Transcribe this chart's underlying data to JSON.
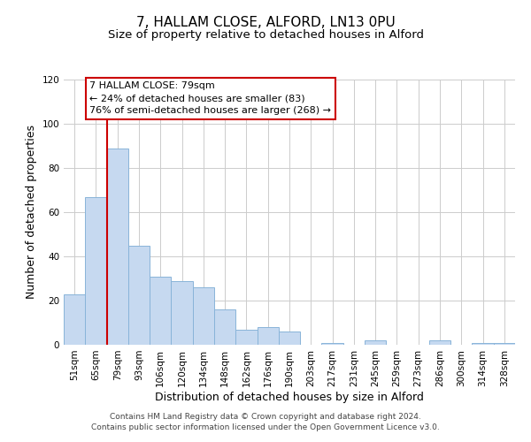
{
  "title": "7, HALLAM CLOSE, ALFORD, LN13 0PU",
  "subtitle": "Size of property relative to detached houses in Alford",
  "xlabel": "Distribution of detached houses by size in Alford",
  "ylabel": "Number of detached properties",
  "categories": [
    "51sqm",
    "65sqm",
    "79sqm",
    "93sqm",
    "106sqm",
    "120sqm",
    "134sqm",
    "148sqm",
    "162sqm",
    "176sqm",
    "190sqm",
    "203sqm",
    "217sqm",
    "231sqm",
    "245sqm",
    "259sqm",
    "273sqm",
    "286sqm",
    "300sqm",
    "314sqm",
    "328sqm"
  ],
  "values": [
    23,
    67,
    89,
    45,
    31,
    29,
    26,
    16,
    7,
    8,
    6,
    0,
    1,
    0,
    2,
    0,
    0,
    2,
    0,
    1,
    1
  ],
  "bar_color": "#c6d9f0",
  "bar_edge_color": "#89b4d9",
  "highlight_index": 2,
  "highlight_line_color": "#cc0000",
  "ylim": [
    0,
    120
  ],
  "yticks": [
    0,
    20,
    40,
    60,
    80,
    100,
    120
  ],
  "annotation_text": "7 HALLAM CLOSE: 79sqm\n← 24% of detached houses are smaller (83)\n76% of semi-detached houses are larger (268) →",
  "annotation_box_color": "#cc0000",
  "footer_line1": "Contains HM Land Registry data © Crown copyright and database right 2024.",
  "footer_line2": "Contains public sector information licensed under the Open Government Licence v3.0.",
  "bg_color": "#ffffff",
  "grid_color": "#cccccc",
  "title_fontsize": 11,
  "subtitle_fontsize": 9.5,
  "axis_label_fontsize": 9,
  "tick_fontsize": 7.5,
  "footer_fontsize": 6.5,
  "annotation_fontsize": 8
}
